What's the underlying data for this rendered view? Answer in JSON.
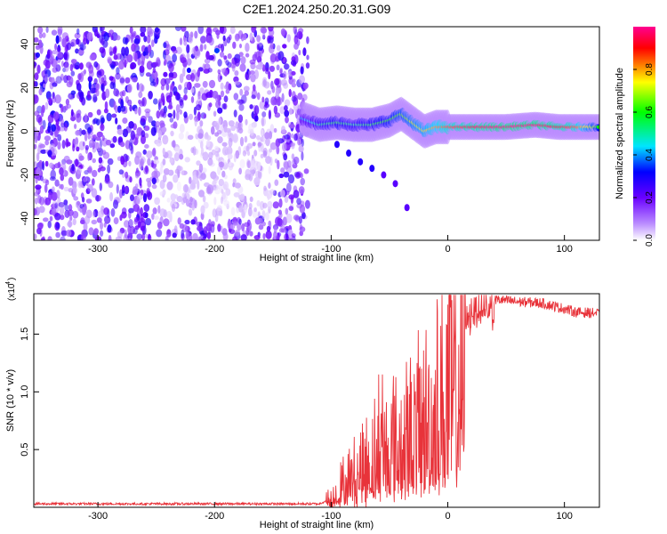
{
  "chart_data": [
    {
      "type": "heatmap",
      "title": "C2E1.2024.250.20.31.G09",
      "xlabel": "Height of straight line (km)",
      "ylabel": "Frequency (Hz)",
      "xlim": [
        -355,
        130
      ],
      "ylim": [
        -50,
        48
      ],
      "xticks": [
        -300,
        -200,
        -100,
        0,
        100
      ],
      "yticks": [
        -40,
        -20,
        0,
        20,
        40
      ],
      "colorbar": {
        "label": "Normalized spectral amplitude",
        "range": [
          0.0,
          1.0
        ],
        "ticks": [
          "0.0",
          "0.2",
          "0.4",
          "0.6",
          "0.8"
        ],
        "colors": [
          "#ffffff",
          "#8a00ff",
          "#0000ff",
          "#00e5ff",
          "#00ff00",
          "#ffff00",
          "#ff0000",
          "#ff00a0"
        ]
      },
      "ridge": {
        "description_points_x": [
          -125,
          -110,
          -95,
          -80,
          -65,
          -50,
          -40,
          -30,
          -20,
          -10,
          0,
          20,
          50,
          75,
          95,
          110,
          130
        ],
        "description_points_y": [
          6,
          3,
          4,
          3,
          3,
          5,
          8,
          4,
          0,
          2,
          2,
          2,
          2,
          3,
          2,
          2,
          2
        ],
        "peak_amplitude": [
          0.4,
          0.5,
          0.55,
          0.5,
          0.55,
          0.6,
          0.65,
          0.7,
          0.75,
          0.8,
          0.85,
          0.9,
          0.95,
          0.95,
          0.9,
          0.85,
          0.6
        ]
      },
      "branch": {
        "x": [
          -95,
          -85,
          -75,
          -65,
          -55,
          -45,
          -35
        ],
        "y": [
          -6,
          -10,
          -14,
          -17,
          -20,
          -24,
          -35
        ]
      },
      "noise_region_x": [
        -355,
        -120
      ]
    },
    {
      "type": "line",
      "xlabel": "Height of straight line (km)",
      "ylabel": "SNR (10 * v/v)",
      "y_multiplier_label": "(x10",
      "y_multiplier_exp": "4",
      "xlim": [
        -355,
        130
      ],
      "ylim": [
        0,
        18500
      ],
      "xticks": [
        -300,
        -200,
        -100,
        0,
        100
      ],
      "yticks": [
        0.5,
        1.0,
        1.5
      ],
      "ytick_labels": [
        "0.5",
        "1.0",
        "1.5"
      ],
      "color": "#e8333a",
      "x": [
        -355,
        -300,
        -200,
        -110,
        -100,
        -90,
        -80,
        -70,
        -60,
        -50,
        -40,
        -30,
        -20,
        -10,
        0,
        10,
        20,
        30,
        40,
        60,
        80,
        100,
        110,
        130
      ],
      "y": [
        300,
        300,
        300,
        300,
        800,
        2500,
        3500,
        5000,
        6000,
        7000,
        7500,
        8000,
        9500,
        11000,
        13500,
        16000,
        17500,
        18000,
        18000,
        17800,
        17700,
        17200,
        16900,
        16800
      ]
    }
  ]
}
